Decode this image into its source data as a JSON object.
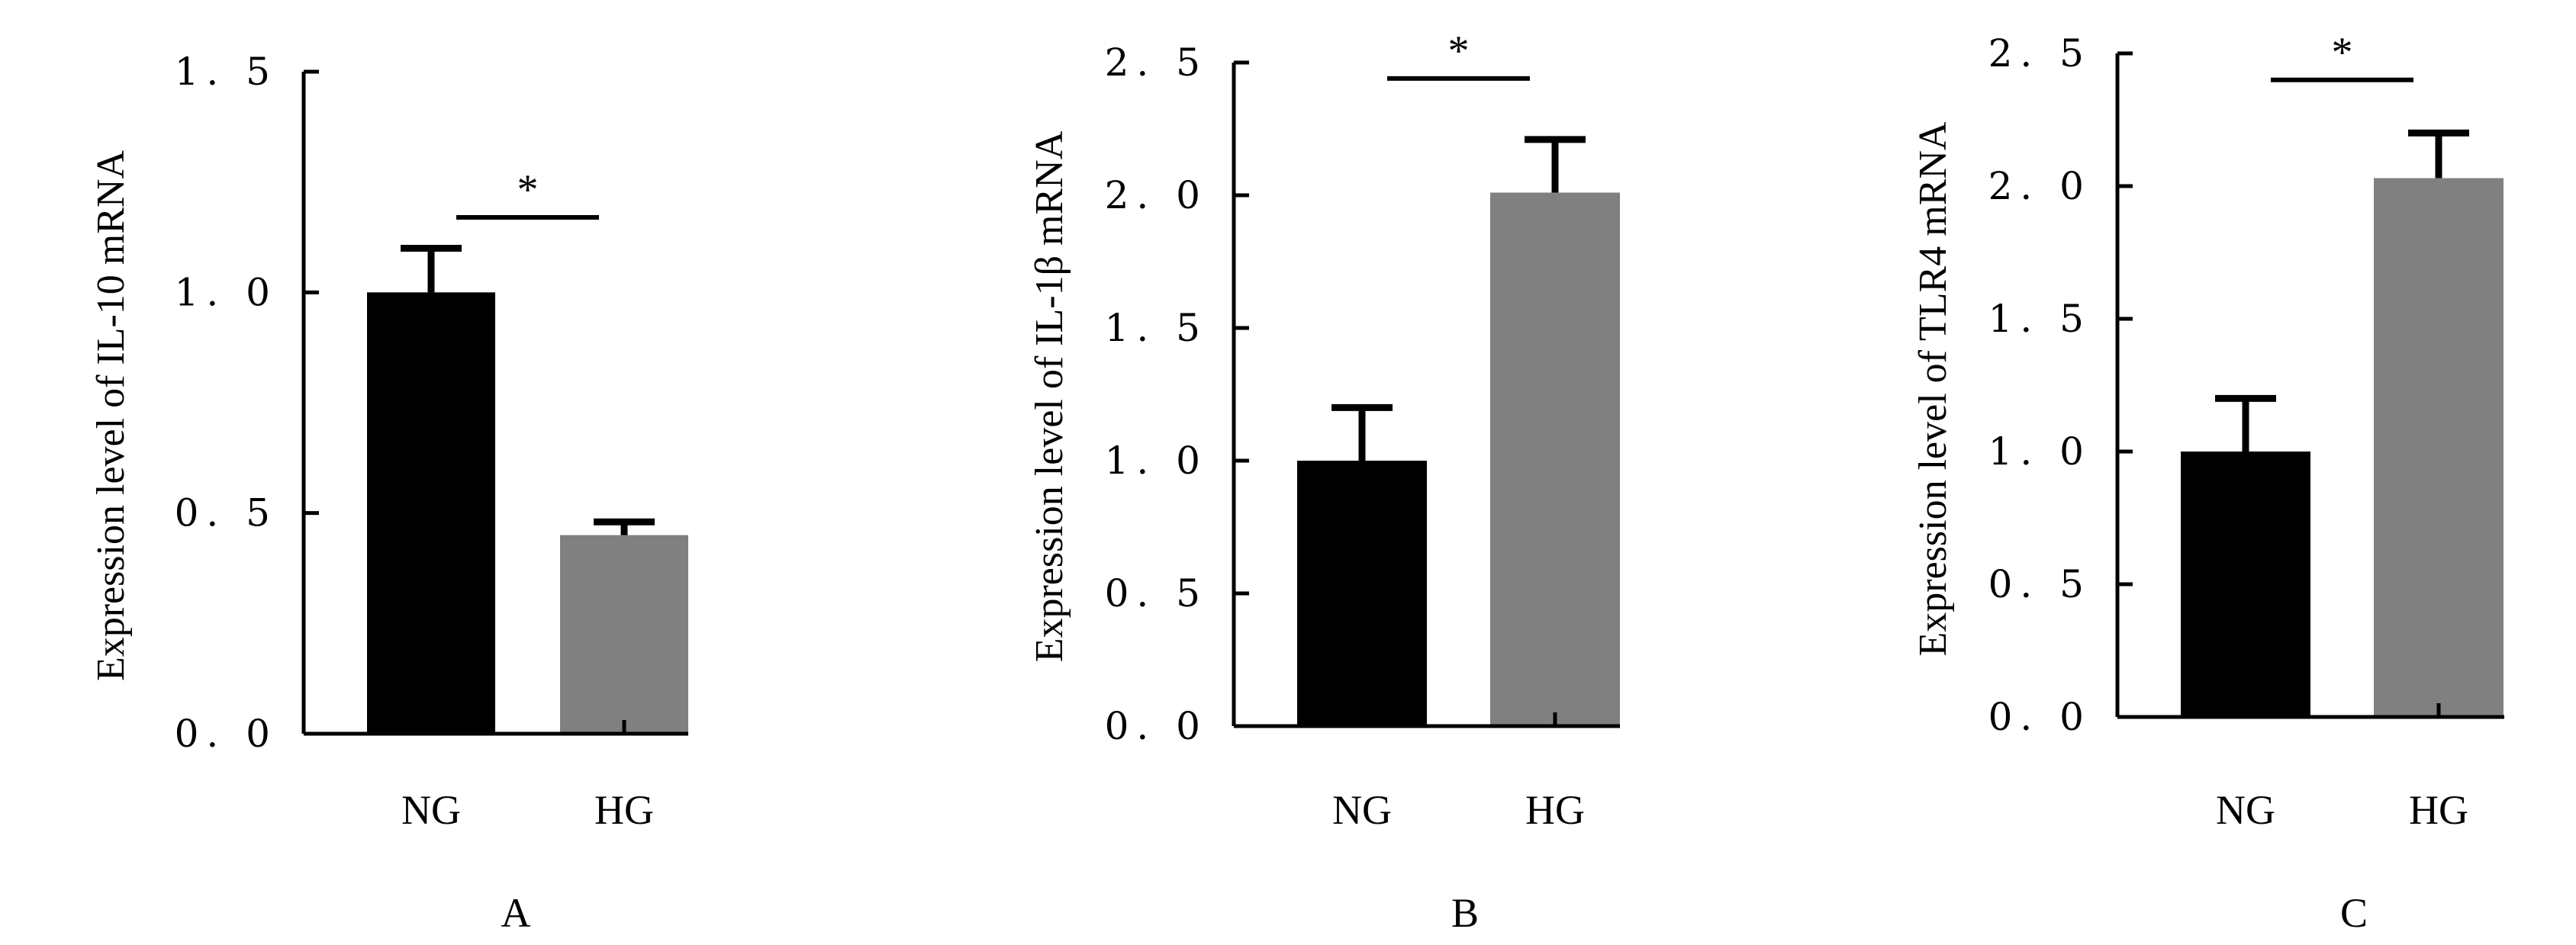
{
  "colors": {
    "NG": "#000000",
    "HG": "#808080"
  },
  "chart_data": [
    {
      "type": "bar",
      "panel_label": "A",
      "categories": [
        "NG",
        "HG"
      ],
      "values": [
        1.0,
        0.45
      ],
      "errors": [
        0.1,
        0.03
      ],
      "ylabel": "Expression level of IL-10 mRNA",
      "ylim": [
        0,
        1.5
      ],
      "yticks": [
        0,
        0.5,
        1.0,
        1.5
      ],
      "ytick_labels": [
        "0. 0",
        "0. 5",
        "1. 0",
        "1. 5"
      ],
      "significance": {
        "label": "*",
        "y": 1.17
      }
    },
    {
      "type": "bar",
      "panel_label": "B",
      "categories": [
        "NG",
        "HG"
      ],
      "values": [
        1.0,
        2.01
      ],
      "errors": [
        0.2,
        0.2
      ],
      "ylabel": "Expression level of IL-1β mRNA",
      "ylim": [
        0,
        2.5
      ],
      "yticks": [
        0,
        0.5,
        1.0,
        1.5,
        2.0,
        2.5
      ],
      "ytick_labels": [
        "0. 0",
        "0. 5",
        "1. 0",
        "1. 5",
        "2. 0",
        "2. 5"
      ],
      "significance": {
        "label": "*",
        "y": 2.44
      }
    },
    {
      "type": "bar",
      "panel_label": "C",
      "categories": [
        "NG",
        "HG"
      ],
      "values": [
        1.0,
        2.03
      ],
      "errors": [
        0.2,
        0.17
      ],
      "ylabel": "Expression level of TLR4 mRNA",
      "ylim": [
        0,
        2.5
      ],
      "yticks": [
        0,
        0.5,
        1.0,
        1.5,
        2.0,
        2.5
      ],
      "ytick_labels": [
        "0. 0",
        "0. 5",
        "1. 0",
        "1. 5",
        "2. 0",
        "2. 5"
      ],
      "significance": {
        "label": "*",
        "y": 2.4
      }
    }
  ]
}
